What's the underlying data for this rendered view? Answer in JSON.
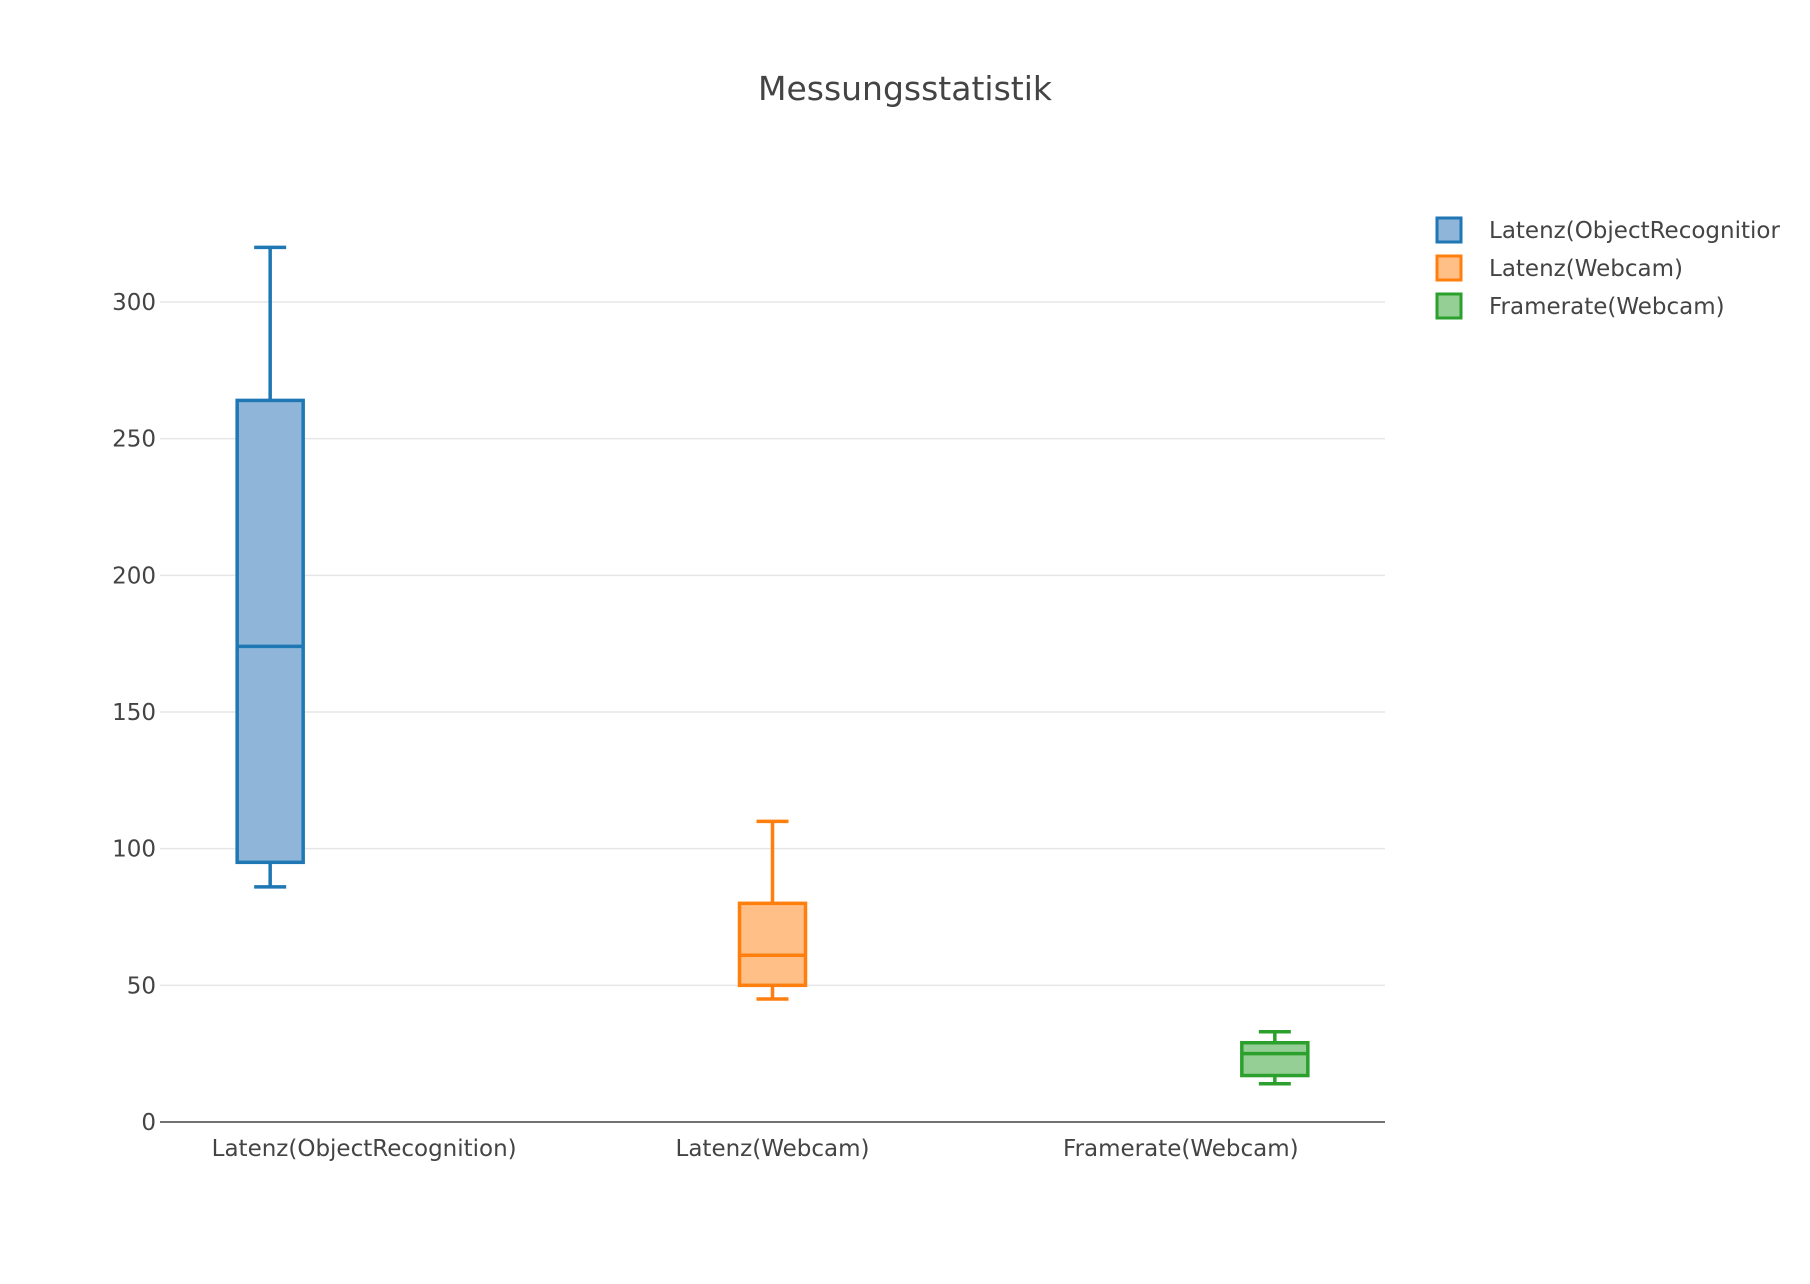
{
  "chart_data": {
    "type": "box",
    "title": "Messungsstatistik",
    "xlabel": "",
    "ylabel": "",
    "ylim": [
      0,
      320
    ],
    "yticks": [
      0,
      50,
      100,
      150,
      200,
      250,
      300
    ],
    "grid": true,
    "legend_position": "top-right",
    "categories": [
      "Latenz(ObjectRecognition)",
      "Latenz(Webcam)",
      "Framerate(Webcam)"
    ],
    "legend_labels": [
      "Latenz(ObjectRecognitior",
      "Latenz(Webcam)",
      "Framerate(Webcam)"
    ],
    "series": [
      {
        "name": "Latenz(ObjectRecognition)",
        "category_index": 0,
        "min": 86,
        "q1": 95,
        "median": 174,
        "q3": 264,
        "max": 320,
        "color": "#1f77b4",
        "fill": "#8fb6d8"
      },
      {
        "name": "Latenz(Webcam)",
        "category_index": 1,
        "min": 45,
        "q1": 50,
        "median": 61,
        "q3": 80,
        "max": 110,
        "color": "#ff7f0e",
        "fill": "#ffbf86"
      },
      {
        "name": "Framerate(Webcam)",
        "category_index": 2,
        "min": 14,
        "q1": 17,
        "median": 25,
        "q3": 29,
        "max": 33,
        "color": "#2ca02c",
        "fill": "#95cf95"
      }
    ]
  }
}
